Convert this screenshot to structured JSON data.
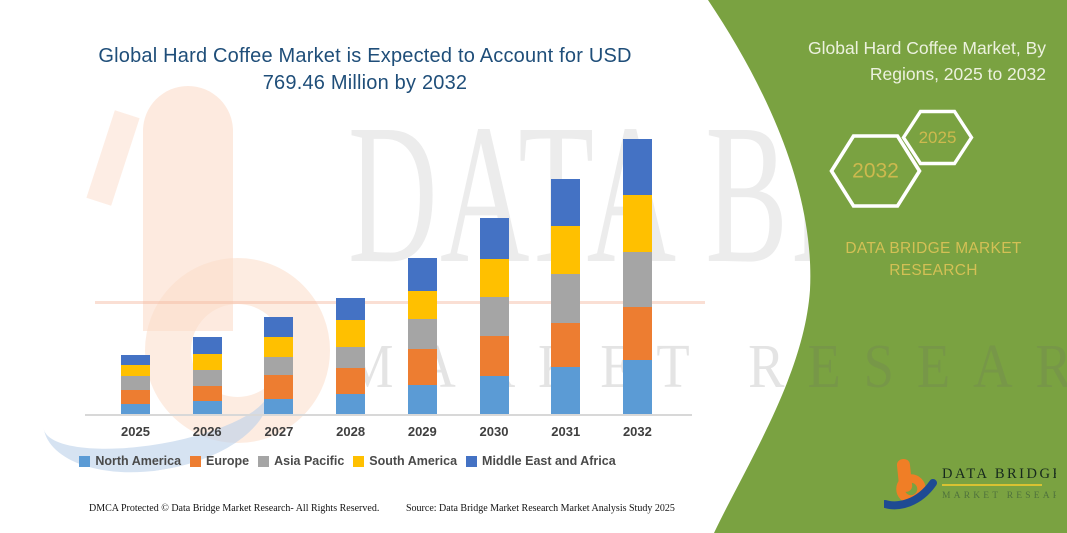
{
  "title": {
    "line1": "Global Hard Coffee Market is Expected to Account for USD",
    "line2": "769.46 Million by 2032"
  },
  "chart_data": {
    "type": "bar",
    "stacked": true,
    "title": "Global Hard Coffee Market is Expected to Account for USD 769.46 Million by 2032",
    "unit": "USD Million",
    "categories": [
      "2025",
      "2026",
      "2027",
      "2028",
      "2029",
      "2030",
      "2031",
      "2032"
    ],
    "series": [
      {
        "name": "North America",
        "color": "#5B9BD5",
        "values": [
          31,
          39,
          44,
          60,
          84,
          109,
          133,
          153.46
        ]
      },
      {
        "name": "Europe",
        "color": "#ED7D31",
        "values": [
          39,
          42,
          68,
          70,
          99,
          110,
          125,
          149
        ]
      },
      {
        "name": "Asia Pacific",
        "color": "#A5A5A5",
        "values": [
          40,
          44,
          51,
          60,
          84,
          109,
          135,
          153
        ]
      },
      {
        "name": "South America",
        "color": "#FFC000",
        "values": [
          30,
          45,
          54,
          74,
          79,
          107,
          134,
          157
        ]
      },
      {
        "name": "Middle East and Africa",
        "color": "#4472C4",
        "values": [
          28,
          47,
          56,
          62,
          93,
          114,
          131,
          157
        ]
      }
    ],
    "totals": [
      168,
      217,
      273,
      326,
      439,
      549,
      658,
      769.46
    ],
    "xlabel": "",
    "ylabel": "",
    "ylim": [
      0,
      800
    ],
    "grid": false,
    "y_axis_visible": false,
    "legend_position": "bottom"
  },
  "footer": {
    "left": "DMCA Protected © Data Bridge Market Research-  All Rights Reserved.",
    "right": "Source: Data Bridge Market Research  Market Analysis Study 2025"
  },
  "right_panel": {
    "bg_color": "#7AA241",
    "accent_yellow": "#D3C055",
    "title_line1": "Global Hard Coffee Market, By",
    "title_line2": "Regions, 2025 to 2032",
    "hexagons": [
      {
        "label": "2032"
      },
      {
        "label": "2025"
      }
    ],
    "brand_line1": "DATA BRIDGE MARKET",
    "brand_line2": "RESEARCH"
  },
  "logo": {
    "name_text": "DATA BRIDGE",
    "sub_text": "MARKET RESEARCH",
    "orange": "#F07E26",
    "blue": "#1E4B93",
    "underline_yellow": "#D8C232"
  },
  "watermark": {
    "line1": "DATA BRIDGE",
    "line2": "MARKET RESEARCH"
  }
}
